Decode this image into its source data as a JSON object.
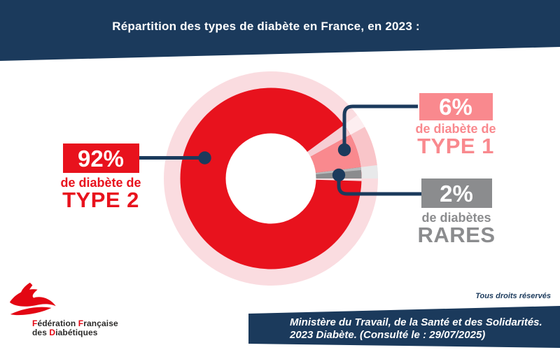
{
  "header": {
    "title": "Répartition des types de diabète en France, en 2023 :"
  },
  "chart_data": {
    "type": "pie",
    "donut": true,
    "title": "Répartition des types de diabète en France, en 2023 :",
    "unit": "%",
    "start_angle_deg": 0,
    "direction": "ccw",
    "slices": [
      {
        "label": "RARES",
        "sublabel": "de diabètes",
        "value": 2,
        "pct_label": "2%",
        "color": "#8B8C8E"
      },
      {
        "label": "TYPE 1",
        "sublabel": "de diabète de",
        "value": 6,
        "pct_label": "6%",
        "color": "#F9898E"
      },
      {
        "label": "TYPE 2",
        "sublabel": "de diabète de",
        "value": 92,
        "pct_label": "92%",
        "color": "#E8121D"
      }
    ]
  },
  "donut_style": {
    "halo": "#FADCE0",
    "hole": "#FFFFFF",
    "ext": {
      "RARES": "#E8E9EA",
      "TYPE 1": "#F9C5C9"
    },
    "accent": {
      "start": 28.8,
      "end": 36.3,
      "color": "#F6CED4",
      "ext": "#FDEEF0"
    },
    "gray_edge": {
      "start": 5.3,
      "end": 7.2,
      "color": "#B8BABC"
    },
    "pre_separator": {
      "start": -1.6,
      "end": 0,
      "color": "#F9E2E4"
    }
  },
  "theme": {
    "navy": "#1B3A5C",
    "connector": "#1B3A5C",
    "logo_red": "#E30613",
    "logo_dark": "#2B2A29"
  },
  "footer": {
    "rights": "Tous droits réservés",
    "source_line1": "Ministère du Travail, de la Santé et des Solidarités.",
    "source_line2": "2023 Diabète. (Consulté le : 29/07/2025)"
  },
  "logo": {
    "lines": [
      [
        {
          "t": "F",
          "c": "red"
        },
        {
          "t": "édération ",
          "c": "dark"
        },
        {
          "t": "F",
          "c": "red"
        },
        {
          "t": "rançaise",
          "c": "dark"
        }
      ],
      [
        {
          "t": "des ",
          "c": "dark"
        },
        {
          "t": "D",
          "c": "red"
        },
        {
          "t": "iabétiques",
          "c": "dark"
        }
      ]
    ]
  }
}
